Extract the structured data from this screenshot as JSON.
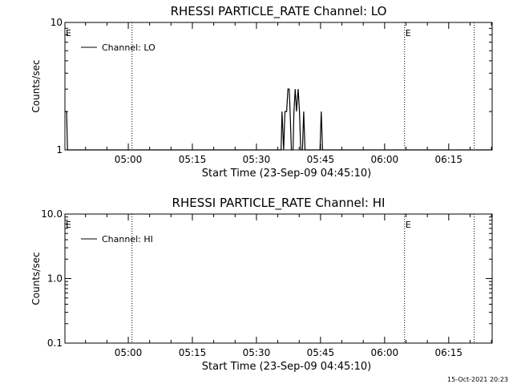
{
  "chart_data": [
    {
      "type": "line",
      "title": "RHESSI PARTICLE_RATE Channel: LO",
      "xlabel": "Start Time (23-Sep-09 04:45:10)",
      "ylabel": "Counts/sec",
      "y_scale": "log",
      "ylim": [
        1,
        10
      ],
      "y_ticks": [
        "1",
        "10"
      ],
      "xlim_min_from_start": [
        0,
        100
      ],
      "x_ticks": [
        {
          "label": "05:00",
          "min": 14.83
        },
        {
          "label": "05:15",
          "min": 29.83
        },
        {
          "label": "05:30",
          "min": 44.83
        },
        {
          "label": "05:45",
          "min": 59.83
        },
        {
          "label": "06:00",
          "min": 74.83
        },
        {
          "label": "06:15",
          "min": 89.83
        }
      ],
      "vlines_min": [
        15.7,
        79.5,
        95.8
      ],
      "e_marks_min": [
        0,
        79.5
      ],
      "e_label": "E",
      "legend": {
        "position": "top-left",
        "label": "Channel: LO"
      },
      "series": [
        {
          "name": "Channel: LO",
          "color": "#000000",
          "points": [
            [
              0,
              2
            ],
            [
              0.4,
              2
            ],
            [
              0.6,
              1
            ],
            [
              50.6,
              1
            ],
            [
              50.8,
              2
            ],
            [
              51.2,
              1
            ],
            [
              51.5,
              2
            ],
            [
              51.9,
              2
            ],
            [
              52.2,
              3
            ],
            [
              52.5,
              3
            ],
            [
              52.7,
              2
            ],
            [
              53.0,
              1
            ],
            [
              53.4,
              1
            ],
            [
              53.6,
              2
            ],
            [
              53.9,
              3
            ],
            [
              54.2,
              2
            ],
            [
              54.6,
              3
            ],
            [
              54.9,
              2
            ],
            [
              55.2,
              1
            ],
            [
              55.6,
              1
            ],
            [
              55.9,
              2
            ],
            [
              56.2,
              1
            ],
            [
              59.7,
              1
            ],
            [
              60.0,
              2
            ],
            [
              60.3,
              1
            ],
            [
              100,
              1
            ]
          ]
        }
      ]
    },
    {
      "type": "line",
      "title": "RHESSI PARTICLE_RATE Channel: HI",
      "xlabel": "Start Time (23-Sep-09 04:45:10)",
      "ylabel": "Counts/sec",
      "y_scale": "log",
      "ylim": [
        0.1,
        10
      ],
      "y_ticks": [
        "0.1",
        "1.0",
        "10.0"
      ],
      "xlim_min_from_start": [
        0,
        100
      ],
      "x_ticks": [
        {
          "label": "05:00",
          "min": 14.83
        },
        {
          "label": "05:15",
          "min": 29.83
        },
        {
          "label": "05:30",
          "min": 44.83
        },
        {
          "label": "05:45",
          "min": 59.83
        },
        {
          "label": "06:00",
          "min": 74.83
        },
        {
          "label": "06:15",
          "min": 89.83
        }
      ],
      "vlines_min": [
        15.7,
        79.5,
        95.8
      ],
      "e_marks_min": [
        0,
        79.5
      ],
      "e_label": "E",
      "legend": {
        "position": "top-left",
        "label": "Channel: HI"
      },
      "series": [
        {
          "name": "Channel: HI",
          "color": "#000000",
          "points": []
        }
      ]
    }
  ],
  "footer": {
    "timestamp": "15-Oct-2021 20:23"
  }
}
